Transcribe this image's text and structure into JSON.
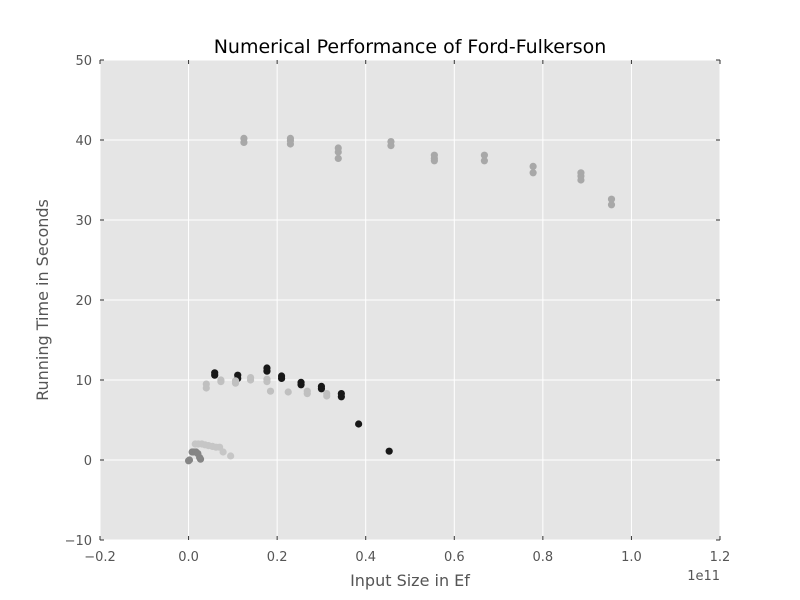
{
  "chart_data": {
    "type": "scatter",
    "title": "Numerical Performance of Ford-Fulkerson",
    "xlabel": "Input Size in Ef",
    "ylabel": "Running Time in Seconds",
    "x_offset_label": "1e11",
    "xlim": [
      -0.2,
      1.2
    ],
    "ylim": [
      -10,
      50
    ],
    "xticks": [
      -0.2,
      0.0,
      0.2,
      0.4,
      0.6,
      0.8,
      1.0,
      1.2
    ],
    "xtick_labels": [
      "−0.2",
      "0.0",
      "0.2",
      "0.4",
      "0.6",
      "0.8",
      "1.0",
      "1.2"
    ],
    "yticks": [
      -10,
      0,
      10,
      20,
      30,
      40,
      50
    ],
    "ytick_labels": [
      "−10",
      "0",
      "10",
      "20",
      "30",
      "40",
      "50"
    ],
    "grid": true,
    "background": "#e5e5e5",
    "gridColor": "#ffffff",
    "series": [
      {
        "color": "#a8a8a8",
        "points": [
          [
            0.125,
            39.7
          ],
          [
            0.125,
            40.2
          ],
          [
            0.23,
            39.5
          ],
          [
            0.23,
            39.9
          ],
          [
            0.23,
            40.2
          ],
          [
            0.338,
            37.7
          ],
          [
            0.338,
            38.5
          ],
          [
            0.338,
            39.0
          ],
          [
            0.457,
            39.3
          ],
          [
            0.457,
            39.8
          ],
          [
            0.555,
            37.4
          ],
          [
            0.555,
            37.7
          ],
          [
            0.555,
            38.1
          ],
          [
            0.668,
            37.4
          ],
          [
            0.668,
            38.1
          ],
          [
            0.778,
            35.9
          ],
          [
            0.778,
            36.7
          ],
          [
            0.886,
            35.0
          ],
          [
            0.886,
            35.5
          ],
          [
            0.886,
            35.9
          ],
          [
            0.955,
            31.9
          ],
          [
            0.955,
            32.6
          ]
        ]
      },
      {
        "color": "#181818",
        "points": [
          [
            0.059,
            10.6
          ],
          [
            0.059,
            10.9
          ],
          [
            0.111,
            10.2
          ],
          [
            0.111,
            10.6
          ],
          [
            0.177,
            11.1
          ],
          [
            0.177,
            11.5
          ],
          [
            0.21,
            10.2
          ],
          [
            0.21,
            10.5
          ],
          [
            0.254,
            9.4
          ],
          [
            0.254,
            9.7
          ],
          [
            0.3,
            8.9
          ],
          [
            0.3,
            9.2
          ],
          [
            0.345,
            7.9
          ],
          [
            0.345,
            8.3
          ],
          [
            0.384,
            4.5
          ],
          [
            0.453,
            1.1
          ]
        ]
      },
      {
        "color": "#c0c0c0",
        "points": [
          [
            0.04,
            9.0
          ],
          [
            0.04,
            9.5
          ],
          [
            0.073,
            9.8
          ],
          [
            0.073,
            10.0
          ],
          [
            0.106,
            9.6
          ],
          [
            0.106,
            9.9
          ],
          [
            0.14,
            10.0
          ],
          [
            0.14,
            10.3
          ],
          [
            0.177,
            9.8
          ],
          [
            0.177,
            10.1
          ],
          [
            0.185,
            8.6
          ],
          [
            0.225,
            8.5
          ],
          [
            0.268,
            8.3
          ],
          [
            0.268,
            8.6
          ],
          [
            0.312,
            8.0
          ],
          [
            0.312,
            8.3
          ]
        ]
      },
      {
        "color": "#c6c6c6",
        "points": [
          [
            0.015,
            2.0
          ],
          [
            0.022,
            2.0
          ],
          [
            0.03,
            2.0
          ],
          [
            0.037,
            1.9
          ],
          [
            0.045,
            1.8
          ],
          [
            0.054,
            1.7
          ],
          [
            0.062,
            1.6
          ],
          [
            0.07,
            1.6
          ],
          [
            0.078,
            1.0
          ],
          [
            0.095,
            0.5
          ]
        ]
      },
      {
        "color": "#858585",
        "points": [
          [
            0.0,
            -0.1
          ],
          [
            0.002,
            0.0
          ],
          [
            0.008,
            1.0
          ],
          [
            0.012,
            1.0
          ],
          [
            0.017,
            1.0
          ],
          [
            0.021,
            0.8
          ],
          [
            0.025,
            0.3
          ],
          [
            0.027,
            0.1
          ]
        ]
      }
    ]
  }
}
